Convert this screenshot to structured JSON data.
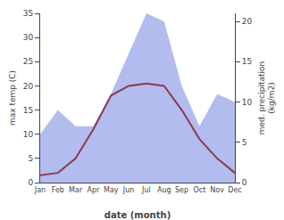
{
  "chart_data": {
    "type": "line",
    "categories": [
      "Jan",
      "Feb",
      "Mar",
      "Apr",
      "May",
      "Jun",
      "Jul",
      "Aug",
      "Sep",
      "Oct",
      "Nov",
      "Dec"
    ],
    "series": [
      {
        "type": "area",
        "color": "#b3bcee",
        "axis": "y2",
        "values": [
          6.0,
          9.0,
          7.0,
          7.0,
          11.0,
          16.0,
          21.0,
          20.0,
          12.0,
          7.0,
          11.0,
          10.0
        ]
      },
      {
        "type": "line",
        "color": "#8B3A52",
        "values": [
          1.5,
          2.0,
          5.0,
          11.0,
          18.0,
          20.0,
          20.5,
          20.0,
          15.0,
          9.0,
          5.0,
          2.0
        ]
      }
    ],
    "xlabel": "date (month)",
    "ylabel": "max temp (C)",
    "y2label": "med. precipitation\n(kg/m2)",
    "ylim": [
      0,
      35
    ],
    "yticks": [
      0,
      5,
      10,
      15,
      20,
      25,
      30,
      35
    ],
    "y2lim": [
      0,
      21
    ],
    "y2ticks": [
      0,
      5,
      10,
      15,
      20
    ],
    "grid": false
  }
}
